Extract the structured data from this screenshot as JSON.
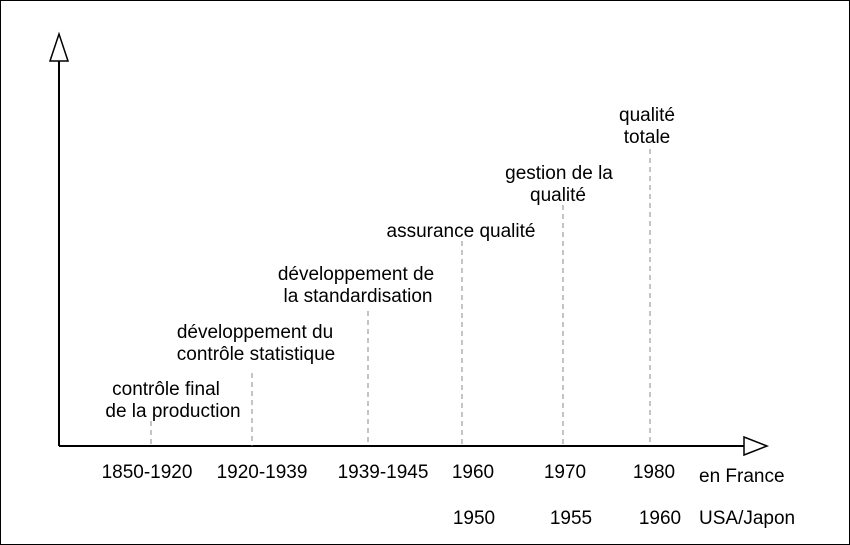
{
  "stages": [
    {
      "lines": [
        "contrôle final",
        "de la production"
      ],
      "period_france": "1850-1920",
      "period_usa": ""
    },
    {
      "lines": [
        "développement du",
        "contrôle statistique"
      ],
      "period_france": "1920-1939",
      "period_usa": ""
    },
    {
      "lines": [
        "développement de",
        "la standardisation"
      ],
      "period_france": "1939-1945",
      "period_usa": ""
    },
    {
      "lines": [
        "assurance qualité"
      ],
      "period_france": "1960",
      "period_usa": "1950"
    },
    {
      "lines": [
        "gestion de la",
        "qualité"
      ],
      "period_france": "1970",
      "period_usa": "1955"
    },
    {
      "lines": [
        "qualité",
        "totale"
      ],
      "period_france": "1980",
      "period_usa": "1960"
    }
  ],
  "row_labels": {
    "france": "en France",
    "usa_japan": "USA/Japon"
  }
}
